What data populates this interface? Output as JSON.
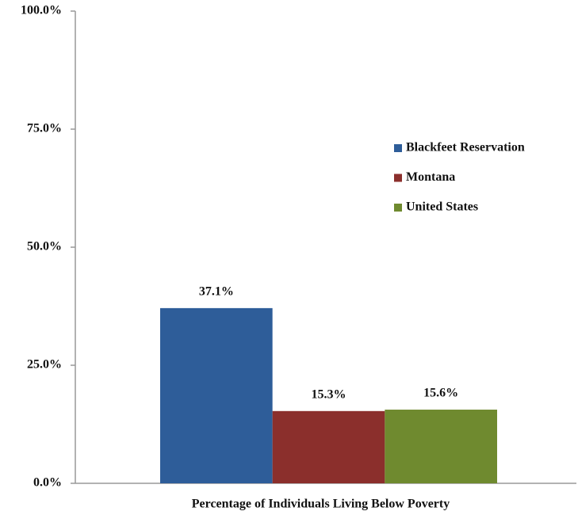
{
  "chart_data": {
    "type": "bar",
    "categories": [
      "Percentage of Individuals Living Below Poverty"
    ],
    "series": [
      {
        "name": "Blackfeet Reservation",
        "color": "#2e5d99",
        "values": [
          37.1
        ],
        "value_labels": [
          "37.1%"
        ]
      },
      {
        "name": "Montana",
        "color": "#8b2f2c",
        "values": [
          15.3
        ],
        "value_labels": [
          "15.3%"
        ]
      },
      {
        "name": "United States",
        "color": "#6f8a2f",
        "values": [
          15.6
        ],
        "value_labels": [
          "15.6%"
        ]
      }
    ],
    "ylim": [
      0,
      100
    ],
    "yticks": [
      {
        "value": 0,
        "label": "0.0%"
      },
      {
        "value": 25,
        "label": "25.0%"
      },
      {
        "value": 50,
        "label": "50.0%"
      },
      {
        "value": 75,
        "label": "75.0%"
      },
      {
        "value": 100,
        "label": "100.0%"
      }
    ],
    "grid": false,
    "legend": "right"
  }
}
